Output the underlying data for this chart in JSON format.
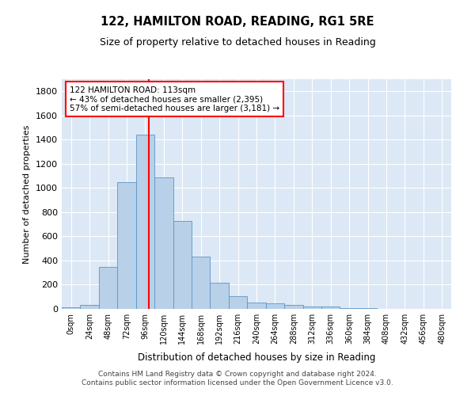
{
  "title1": "122, HAMILTON ROAD, READING, RG1 5RE",
  "title2": "Size of property relative to detached houses in Reading",
  "xlabel": "Distribution of detached houses by size in Reading",
  "ylabel": "Number of detached properties",
  "bar_labels": [
    "0sqm",
    "24sqm",
    "48sqm",
    "72sqm",
    "96sqm",
    "120sqm",
    "144sqm",
    "168sqm",
    "192sqm",
    "216sqm",
    "240sqm",
    "264sqm",
    "288sqm",
    "312sqm",
    "336sqm",
    "360sqm",
    "384sqm",
    "408sqm",
    "432sqm",
    "456sqm",
    "480sqm"
  ],
  "bar_heights": [
    10,
    35,
    350,
    1050,
    1440,
    1090,
    730,
    430,
    215,
    105,
    50,
    45,
    30,
    20,
    20,
    5,
    5,
    0,
    0,
    0,
    0
  ],
  "bar_color": "#b8d0e8",
  "bar_edge_color": "#5a96c8",
  "vline_color": "red",
  "annotation_text": "122 HAMILTON ROAD: 113sqm\n← 43% of detached houses are smaller (2,395)\n57% of semi-detached houses are larger (3,181) →",
  "annotation_box_color": "red",
  "ylim": [
    0,
    1900
  ],
  "yticks": [
    0,
    200,
    400,
    600,
    800,
    1000,
    1200,
    1400,
    1600,
    1800
  ],
  "background_color": "#dce8f5",
  "footer1": "Contains HM Land Registry data © Crown copyright and database right 2024.",
  "footer2": "Contains public sector information licensed under the Open Government Licence v3.0.",
  "grid_color": "#ffffff"
}
